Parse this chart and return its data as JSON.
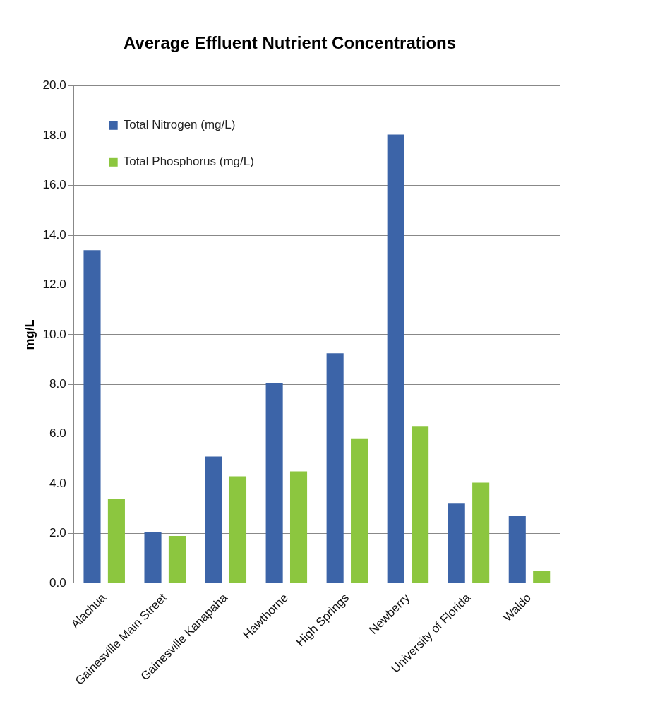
{
  "chart_data": {
    "type": "bar",
    "title": "Average Effluent Nutrient Concentrations",
    "ylabel": "mg/L",
    "categories": [
      "Alachua",
      "Gainesville Main Street",
      "Gainesville Kanapaha",
      "Hawthorne",
      "High Springs",
      "Newberry",
      "University of Florida",
      "Waldo"
    ],
    "series": [
      {
        "name": "Total Nitrogen (mg/L)",
        "color": "#3c64a8",
        "values": [
          13.4,
          2.05,
          5.1,
          8.05,
          9.25,
          18.05,
          3.2,
          2.7
        ]
      },
      {
        "name": "Total Phosphorus (mg/L)",
        "color": "#8cc63f",
        "values": [
          3.4,
          1.9,
          4.3,
          4.5,
          5.8,
          6.3,
          4.05,
          0.5
        ]
      }
    ],
    "ylim": [
      0,
      20
    ],
    "yticks": [
      {
        "value": 0,
        "label": "0.0"
      },
      {
        "value": 2,
        "label": "2.0"
      },
      {
        "value": 4,
        "label": "4.0"
      },
      {
        "value": 6,
        "label": "6.0"
      },
      {
        "value": 8,
        "label": "8.0"
      },
      {
        "value": 10,
        "label": "10.0"
      },
      {
        "value": 12,
        "label": "12.0"
      },
      {
        "value": 14,
        "label": "14.0"
      },
      {
        "value": 16,
        "label": "16.0"
      },
      {
        "value": 18,
        "label": "18.0"
      },
      {
        "value": 20,
        "label": "20.0"
      }
    ],
    "grid": "y",
    "legend": "top left"
  }
}
